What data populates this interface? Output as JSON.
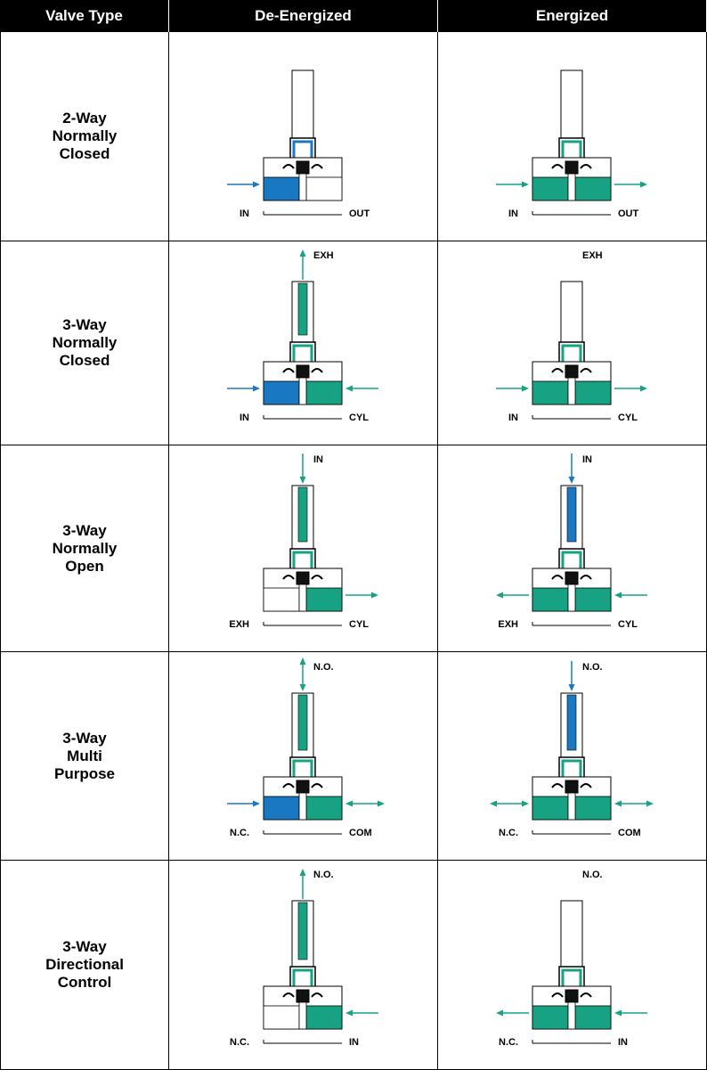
{
  "headers": [
    "Valve Type",
    "De-Energized",
    "Energized"
  ],
  "colors": {
    "blue": "#1a78c2",
    "green": "#17a383",
    "arrow_blue": "#1a78c2",
    "arrow_green": "#1aa587"
  },
  "rows": [
    {
      "type_lines": [
        "2-Way",
        "Normally",
        "Closed"
      ],
      "de_energized": {
        "left_label": "IN",
        "right_label": "OUT",
        "top_label": ""
      },
      "energized": {
        "left_label": "IN",
        "right_label": "OUT",
        "top_label": ""
      }
    },
    {
      "type_lines": [
        "3-Way",
        "Normally",
        "Closed"
      ],
      "de_energized": {
        "left_label": "IN",
        "right_label": "CYL",
        "top_label": "EXH"
      },
      "energized": {
        "left_label": "IN",
        "right_label": "CYL",
        "top_label": "EXH"
      }
    },
    {
      "type_lines": [
        "3-Way",
        "Normally",
        "Open"
      ],
      "de_energized": {
        "left_label": "EXH",
        "right_label": "CYL",
        "top_label": "IN"
      },
      "energized": {
        "left_label": "EXH",
        "right_label": "CYL",
        "top_label": "IN"
      }
    },
    {
      "type_lines": [
        "3-Way",
        "Multi",
        "Purpose"
      ],
      "de_energized": {
        "left_label": "N.C.",
        "right_label": "COM",
        "top_label": "N.O."
      },
      "energized": {
        "left_label": "N.C.",
        "right_label": "COM",
        "top_label": "N.O."
      }
    },
    {
      "type_lines": [
        "3-Way",
        "Directional",
        "Control"
      ],
      "de_energized": {
        "left_label": "N.C.",
        "right_label": "IN",
        "top_label": "N.O."
      },
      "energized": {
        "left_label": "N.C.",
        "right_label": "IN",
        "top_label": "N.O."
      }
    }
  ]
}
